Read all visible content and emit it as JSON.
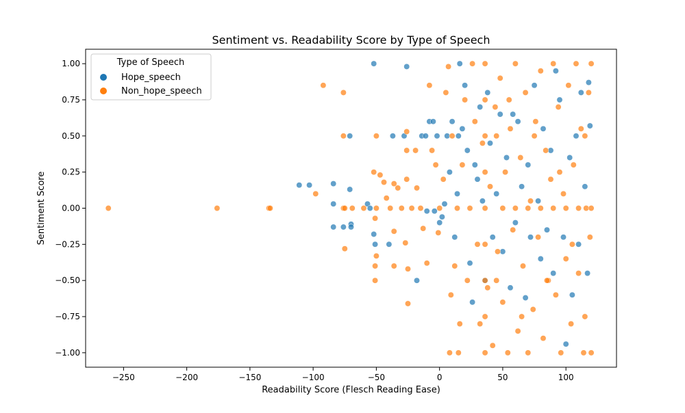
{
  "chart_data": {
    "type": "scatter",
    "title": "Sentiment vs. Readability Score by Type of Speech",
    "xlabel": "Readability Score (Flesch Reading Ease)",
    "ylabel": "Sentiment Score",
    "xlim": [
      -280,
      140
    ],
    "ylim": [
      -1.1,
      1.1
    ],
    "xticks": [
      -250,
      -200,
      -150,
      -100,
      -50,
      0,
      50,
      100
    ],
    "yticks": [
      -1.0,
      -0.75,
      -0.5,
      -0.25,
      0.0,
      0.25,
      0.5,
      0.75,
      1.0
    ],
    "xtick_labels": [
      "−250",
      "−200",
      "−150",
      "−100",
      "−50",
      "0",
      "50",
      "100"
    ],
    "ytick_labels": [
      "−1.00",
      "−0.75",
      "−0.50",
      "−0.25",
      "0.00",
      "0.25",
      "0.50",
      "0.75",
      "1.00"
    ],
    "grid": false,
    "legend": {
      "title": "Type of Speech",
      "placement": "top-left"
    },
    "series": [
      {
        "name": "Hope_speech",
        "color": "#1f77b4",
        "points": [
          [
            -52,
            1.0
          ],
          [
            -26,
            0.98
          ],
          [
            -111,
            0.16
          ],
          [
            -103,
            0.16
          ],
          [
            -84,
            0.17
          ],
          [
            -84,
            0.03
          ],
          [
            -84,
            -0.13
          ],
          [
            -76,
            -0.13
          ],
          [
            -71,
            0.13
          ],
          [
            -71,
            0.5
          ],
          [
            -70,
            -0.11
          ],
          [
            -70,
            -0.13
          ],
          [
            -57,
            0.03
          ],
          [
            -55,
            0.0
          ],
          [
            -52,
            -0.18
          ],
          [
            -51,
            -0.25
          ],
          [
            -40,
            -0.25
          ],
          [
            -37,
            0.5
          ],
          [
            -28,
            0.5
          ],
          [
            -18,
            -0.5
          ],
          [
            -14,
            0.5
          ],
          [
            -11,
            0.5
          ],
          [
            -10,
            -0.02
          ],
          [
            -8,
            0.6
          ],
          [
            -5,
            0.6
          ],
          [
            -4,
            -0.02
          ],
          [
            -2,
            0.5
          ],
          [
            0,
            -0.1
          ],
          [
            2,
            -0.06
          ],
          [
            4,
            0.03
          ],
          [
            6,
            0.5
          ],
          [
            8,
            0.25
          ],
          [
            10,
            0.6
          ],
          [
            12,
            -0.2
          ],
          [
            14,
            0.1
          ],
          [
            15,
            0.5
          ],
          [
            16,
            1.0
          ],
          [
            18,
            0.55
          ],
          [
            20,
            0.85
          ],
          [
            22,
            0.4
          ],
          [
            24,
            -0.38
          ],
          [
            26,
            -0.65
          ],
          [
            28,
            0.3
          ],
          [
            30,
            0.2
          ],
          [
            32,
            0.7
          ],
          [
            34,
            0.05
          ],
          [
            36,
            -0.5
          ],
          [
            38,
            0.8
          ],
          [
            40,
            0.45
          ],
          [
            42,
            -0.2
          ],
          [
            45,
            0.1
          ],
          [
            48,
            0.65
          ],
          [
            50,
            -0.3
          ],
          [
            53,
            0.35
          ],
          [
            56,
            -0.55
          ],
          [
            58,
            0.65
          ],
          [
            60,
            -0.1
          ],
          [
            62,
            0.6
          ],
          [
            65,
            0.15
          ],
          [
            68,
            -0.62
          ],
          [
            70,
            0.3
          ],
          [
            72,
            -0.2
          ],
          [
            75,
            0.85
          ],
          [
            78,
            0.05
          ],
          [
            80,
            -0.35
          ],
          [
            82,
            0.55
          ],
          [
            85,
            -0.15
          ],
          [
            88,
            0.4
          ],
          [
            90,
            -0.45
          ],
          [
            92,
            0.95
          ],
          [
            95,
            0.75
          ],
          [
            98,
            -0.2
          ],
          [
            100,
            -0.94
          ],
          [
            103,
            0.35
          ],
          [
            105,
            -0.6
          ],
          [
            108,
            0.5
          ],
          [
            110,
            -0.25
          ],
          [
            112,
            0.8
          ],
          [
            115,
            0.15
          ],
          [
            117,
            -0.45
          ],
          [
            118,
            0.87
          ],
          [
            119,
            0.57
          ]
        ]
      },
      {
        "name": "Non_hope_speech",
        "color": "#ff7f0e",
        "points": [
          [
            -262,
            0.0
          ],
          [
            -176,
            0.0
          ],
          [
            -135,
            0.0
          ],
          [
            -134,
            0.0
          ],
          [
            -92,
            0.85
          ],
          [
            -98,
            0.1
          ],
          [
            -76,
            0.8
          ],
          [
            -76,
            0.5
          ],
          [
            -76,
            0.0
          ],
          [
            -75,
            0.0
          ],
          [
            -75,
            -0.28
          ],
          [
            -69,
            0.0
          ],
          [
            -60,
            0.0
          ],
          [
            -52,
            0.25
          ],
          [
            -50,
            0.5
          ],
          [
            -50,
            0.0
          ],
          [
            -51,
            -0.07
          ],
          [
            -51,
            -0.4
          ],
          [
            -51,
            -0.5
          ],
          [
            -50,
            -0.33
          ],
          [
            -47,
            0.23
          ],
          [
            -44,
            0.18
          ],
          [
            -42,
            0.07
          ],
          [
            -39,
            0.0
          ],
          [
            -36,
            0.17
          ],
          [
            -36,
            -0.16
          ],
          [
            -36,
            -0.4
          ],
          [
            -33,
            0.14
          ],
          [
            -30,
            0.0
          ],
          [
            -27,
            -0.24
          ],
          [
            -26,
            0.53
          ],
          [
            -26,
            0.4
          ],
          [
            -26,
            0.2
          ],
          [
            -25,
            -0.66
          ],
          [
            -25,
            -0.42
          ],
          [
            -22,
            0.0
          ],
          [
            -19,
            0.4
          ],
          [
            -18,
            0.14
          ],
          [
            -15,
            0.0
          ],
          [
            -13,
            -0.14
          ],
          [
            -10,
            -0.38
          ],
          [
            -8,
            0.85
          ],
          [
            -6,
            0.4
          ],
          [
            -3,
            0.3
          ],
          [
            -1,
            -0.17
          ],
          [
            0,
            0.0
          ],
          [
            3,
            0.2
          ],
          [
            5,
            0.8
          ],
          [
            7,
            0.98
          ],
          [
            8,
            -1.0
          ],
          [
            9,
            -0.6
          ],
          [
            10,
            0.5
          ],
          [
            12,
            -0.4
          ],
          [
            14,
            0.0
          ],
          [
            15,
            -1.0
          ],
          [
            16,
            -0.8
          ],
          [
            18,
            0.3
          ],
          [
            20,
            0.75
          ],
          [
            22,
            -0.5
          ],
          [
            24,
            0.0
          ],
          [
            26,
            1.0
          ],
          [
            28,
            0.6
          ],
          [
            30,
            -0.25
          ],
          [
            32,
            -0.8
          ],
          [
            34,
            0.45
          ],
          [
            36,
            1.0
          ],
          [
            38,
            -0.55
          ],
          [
            40,
            0.15
          ],
          [
            42,
            -0.95
          ],
          [
            44,
            0.7
          ],
          [
            46,
            -0.3
          ],
          [
            48,
            0.9
          ],
          [
            50,
            -0.65
          ],
          [
            52,
            0.25
          ],
          [
            54,
            -1.0
          ],
          [
            56,
            0.55
          ],
          [
            58,
            -0.15
          ],
          [
            60,
            1.0
          ],
          [
            62,
            -0.85
          ],
          [
            64,
            0.35
          ],
          [
            66,
            -0.4
          ],
          [
            68,
            0.8
          ],
          [
            70,
            -1.0
          ],
          [
            72,
            0.05
          ],
          [
            74,
            -0.7
          ],
          [
            76,
            0.6
          ],
          [
            78,
            -0.2
          ],
          [
            80,
            0.95
          ],
          [
            82,
            -0.9
          ],
          [
            84,
            0.4
          ],
          [
            86,
            -0.5
          ],
          [
            88,
            0.2
          ],
          [
            90,
            1.0
          ],
          [
            92,
            -0.6
          ],
          [
            94,
            0.7
          ],
          [
            96,
            -1.0
          ],
          [
            98,
            0.1
          ],
          [
            100,
            -0.35
          ],
          [
            102,
            0.85
          ],
          [
            104,
            -0.8
          ],
          [
            106,
            0.3
          ],
          [
            108,
            1.0
          ],
          [
            110,
            -0.45
          ],
          [
            112,
            0.55
          ],
          [
            114,
            -1.0
          ],
          [
            116,
            0.0
          ],
          [
            118,
            0.8
          ],
          [
            119,
            -0.2
          ],
          [
            120,
            1.0
          ],
          [
            120,
            -1.0
          ],
          [
            120,
            0.0
          ],
          [
            36,
            0.0
          ],
          [
            50,
            0.0
          ],
          [
            60,
            0.0
          ],
          [
            70,
            0.0
          ],
          [
            80,
            0.0
          ],
          [
            90,
            0.0
          ],
          [
            100,
            0.0
          ],
          [
            110,
            0.0
          ],
          [
            36,
            0.25
          ],
          [
            36,
            -0.25
          ],
          [
            36,
            0.5
          ],
          [
            36,
            -0.5
          ],
          [
            36,
            0.75
          ],
          [
            36,
            -0.75
          ],
          [
            36,
            -1.0
          ],
          [
            45,
            0.5
          ],
          [
            45,
            -0.5
          ],
          [
            55,
            0.75
          ],
          [
            65,
            -0.75
          ],
          [
            75,
            0.5
          ],
          [
            85,
            -0.5
          ],
          [
            95,
            0.25
          ],
          [
            105,
            -0.25
          ],
          [
            115,
            0.5
          ],
          [
            115,
            -0.75
          ]
        ]
      }
    ]
  }
}
